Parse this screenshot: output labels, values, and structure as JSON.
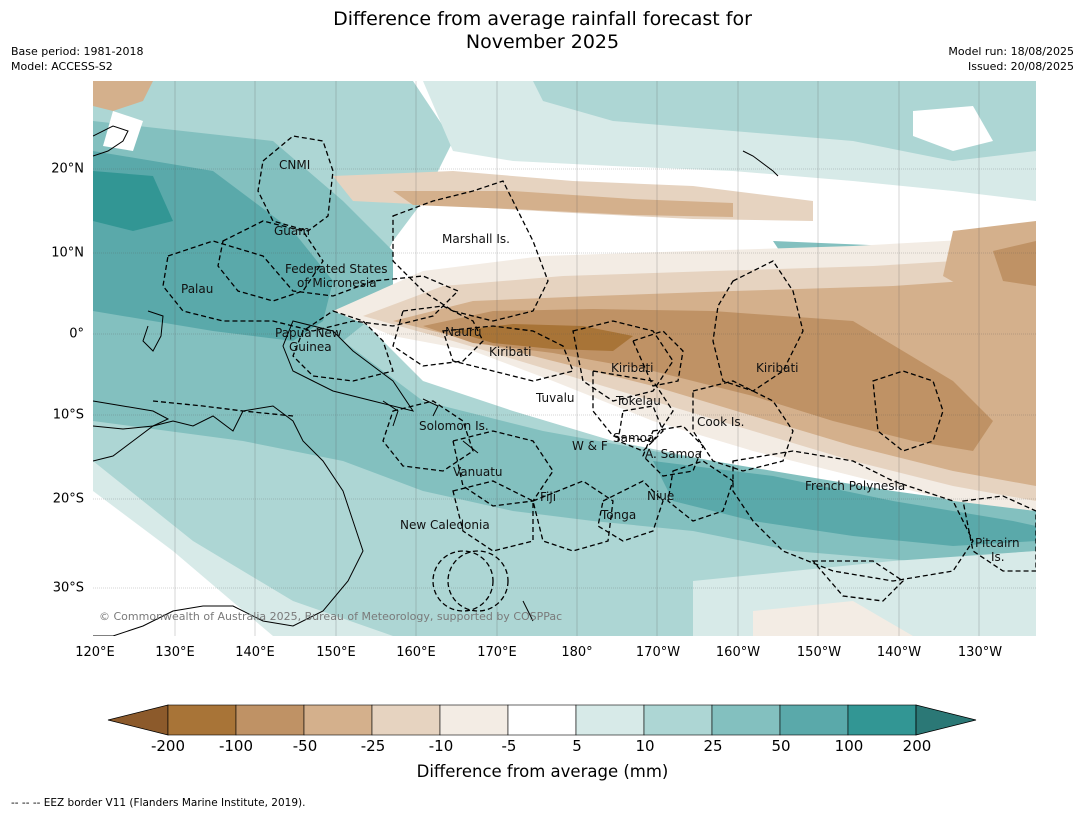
{
  "header": {
    "title_line1": "Difference from average rainfall forecast for",
    "title_line2": "November 2025",
    "base_period": "Base period: 1981-2018",
    "model": "Model: ACCESS-S2",
    "model_run": "Model run: 18/08/2025",
    "issued": "Issued: 20/08/2025"
  },
  "axes": {
    "lon_labels": [
      "120°E",
      "130°E",
      "140°E",
      "150°E",
      "160°E",
      "170°E",
      "180°",
      "170°W",
      "160°W",
      "150°W",
      "140°W",
      "130°W"
    ],
    "lat_labels": [
      "20°N",
      "10°N",
      "0°",
      "10°S",
      "20°S",
      "30°S"
    ]
  },
  "places": [
    "CNMI",
    "Guam",
    "Marshall Is.",
    "Federated States",
    "of Micronesia",
    "Palau",
    "Nauru",
    "Papua New",
    "Guinea",
    "Kiribati",
    "Kiribati",
    "Kiribati",
    "Tuvalu",
    "Tokelau",
    "Cook Is.",
    "Solomon Is.",
    "W & F",
    "Samoa",
    "A. Samoa",
    "Vanuatu",
    "Fiji",
    "Niue",
    "French Polynesia",
    "New Caledonia",
    "Tonga",
    "Pitcairn",
    "Is."
  ],
  "copyright": "© Commonwealth of Australia 2025, Bureau of Meteorology, supported by COSPPac",
  "colorbar": {
    "labels": [
      "-200",
      "-100",
      "-50",
      "-25",
      "-10",
      "-5",
      "5",
      "10",
      "25",
      "50",
      "100",
      "200"
    ],
    "colors": [
      "#8c5a2b",
      "#a87437",
      "#bf9265",
      "#d4b08c",
      "#e6d3c0",
      "#f3ece4",
      "#ffffff",
      "#d7eae8",
      "#add6d4",
      "#83c0bf",
      "#5aa9aa",
      "#329694",
      "#2b7876"
    ],
    "title": "Difference from average (mm)"
  },
  "legend_footer": "--  --  -- EEZ border V11 (Flanders Marine Institute, 2019)."
}
